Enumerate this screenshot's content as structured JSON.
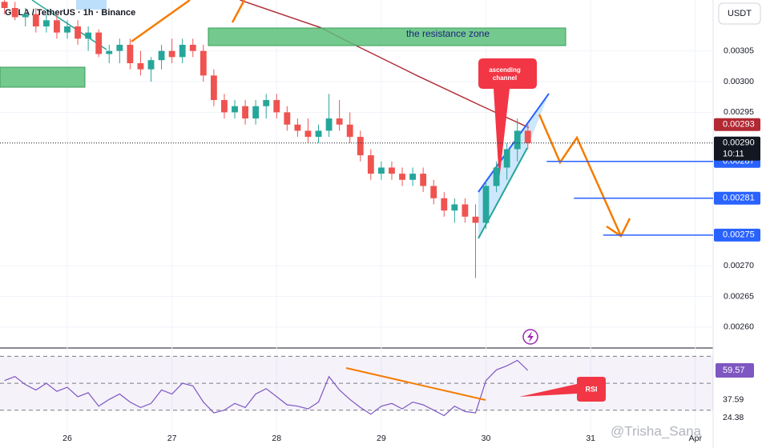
{
  "chart_data": {
    "type": "candlestick",
    "title": "GALA / TetherUS · 1h · Binance",
    "currency": "USDT",
    "x": [
      25.4,
      25.5,
      25.6,
      25.7,
      25.8,
      25.9,
      26.0,
      26.1,
      26.2,
      26.3,
      26.4,
      26.5,
      26.6,
      26.7,
      26.8,
      26.9,
      27.0,
      27.1,
      27.2,
      27.3,
      27.4,
      27.5,
      27.6,
      27.7,
      27.8,
      27.9,
      28.0,
      28.1,
      28.2,
      28.3,
      28.4,
      28.5,
      28.6,
      28.7,
      28.8,
      28.9,
      29.0,
      29.1,
      29.2,
      29.3,
      29.4,
      29.5,
      29.6,
      29.7,
      29.8,
      29.9,
      30.0,
      30.1,
      30.2,
      30.3,
      30.4
    ],
    "open": [
      0.00313,
      0.00312,
      0.003105,
      0.00311,
      0.00309,
      0.0031,
      0.00308,
      0.00309,
      0.00307,
      0.00308,
      0.003045,
      0.00305,
      0.00306,
      0.00303,
      0.00302,
      0.003035,
      0.00305,
      0.00304,
      0.00306,
      0.00305,
      0.00301,
      0.00297,
      0.00295,
      0.00296,
      0.00294,
      0.00296,
      0.00297,
      0.00295,
      0.00293,
      0.00292,
      0.00291,
      0.00292,
      0.00294,
      0.00293,
      0.00291,
      0.00288,
      0.00285,
      0.00286,
      0.00285,
      0.00284,
      0.00285,
      0.00283,
      0.00281,
      0.00279,
      0.0028,
      0.00278,
      0.00277,
      0.00283,
      0.00286,
      0.00289,
      0.00292
    ],
    "high": [
      0.00314,
      0.00313,
      0.00312,
      0.00312,
      0.00311,
      0.00311,
      0.0031,
      0.0031,
      0.00309,
      0.003085,
      0.00306,
      0.00307,
      0.00307,
      0.00305,
      0.00304,
      0.00306,
      0.00307,
      0.00307,
      0.00307,
      0.00306,
      0.00302,
      0.00298,
      0.00297,
      0.00297,
      0.00297,
      0.00298,
      0.00298,
      0.00296,
      0.00294,
      0.00294,
      0.00293,
      0.00298,
      0.00297,
      0.00295,
      0.00292,
      0.00289,
      0.00287,
      0.00287,
      0.00286,
      0.00286,
      0.00286,
      0.00284,
      0.00282,
      0.00281,
      0.00281,
      0.0028,
      0.00284,
      0.00287,
      0.0029,
      0.00294,
      0.00293
    ],
    "low": [
      0.00311,
      0.0031,
      0.00309,
      0.00308,
      0.00308,
      0.00307,
      0.00307,
      0.00306,
      0.00305,
      0.00304,
      0.00303,
      0.00303,
      0.00302,
      0.00301,
      0.003,
      0.00302,
      0.00303,
      0.00303,
      0.00304,
      0.003,
      0.00296,
      0.00294,
      0.00294,
      0.00293,
      0.00293,
      0.00294,
      0.00294,
      0.00292,
      0.00291,
      0.0029,
      0.0029,
      0.00291,
      0.00292,
      0.0029,
      0.00287,
      0.00284,
      0.00284,
      0.00284,
      0.00283,
      0.00283,
      0.00282,
      0.0028,
      0.00278,
      0.00277,
      0.00277,
      0.00268,
      0.00276,
      0.00282,
      0.00284,
      0.00287,
      0.00289
    ],
    "close": [
      0.00312,
      0.003105,
      0.00311,
      0.00309,
      0.0031,
      0.00308,
      0.00309,
      0.00307,
      0.00308,
      0.003045,
      0.00305,
      0.00306,
      0.00303,
      0.00302,
      0.003035,
      0.00305,
      0.00304,
      0.00306,
      0.00305,
      0.00301,
      0.00297,
      0.00295,
      0.00296,
      0.00294,
      0.00296,
      0.00297,
      0.00295,
      0.00293,
      0.00292,
      0.00291,
      0.00292,
      0.00294,
      0.00293,
      0.00291,
      0.00288,
      0.00285,
      0.00286,
      0.00285,
      0.00284,
      0.00285,
      0.00283,
      0.00281,
      0.00279,
      0.0028,
      0.00278,
      0.00277,
      0.00283,
      0.00286,
      0.00289,
      0.00292,
      0.0029
    ],
    "up_color": "#26a69a",
    "down_color": "#ef5350",
    "xlim": [
      25.357,
      32.17
    ],
    "xticks": [
      26,
      27,
      28,
      29,
      30,
      31,
      {
        "value": 32,
        "label": "Apr"
      }
    ],
    "ylim": [
      0.002566,
      0.003133
    ],
    "yticks": [
      0.00305,
      {
        "value": 0.003,
        "label": "0.00300"
      },
      0.00295,
      {
        "value": 0.0027,
        "label": "0.00270"
      },
      0.00265,
      {
        "value": 0.0026,
        "label": "0.00260"
      }
    ],
    "ma_line": {
      "color": "#b2323a",
      "x": [
        27.65,
        28.42,
        28.72,
        29.34,
        29.95,
        30.41
      ],
      "values": [
        0.003133,
        0.003088,
        0.003062,
        0.00301,
        0.002961,
        0.002925
      ]
    },
    "price_levels": [
      {
        "value": 0.00293,
        "color": "#b22833",
        "line": false
      },
      {
        "value": 0.00287,
        "color": "#2962ff",
        "line": true,
        "from": 30.58
      },
      {
        "value": 0.00281,
        "color": "#2962ff",
        "line": true,
        "from": 30.84
      },
      {
        "value": 0.00275,
        "color": "#2962ff",
        "line": true,
        "from": 31.12
      }
    ],
    "current": {
      "value": 0.0029,
      "label": "0.00290",
      "countdown": "10:11"
    },
    "annotations": {
      "resistance": "the resistance zone",
      "channel": [
        "ascending",
        "channel"
      ],
      "rsi": "RSI"
    },
    "rsi": {
      "color": "#7e57c2",
      "values": [
        52,
        55,
        49,
        45,
        50,
        44,
        47,
        40,
        43,
        33,
        38,
        42,
        36,
        32,
        35,
        45,
        42,
        50,
        48,
        36,
        28,
        30,
        35,
        32,
        42,
        46,
        40,
        34,
        33,
        31,
        36,
        55,
        45,
        38,
        32,
        27,
        33,
        35,
        31,
        36,
        34,
        30,
        26,
        33,
        29,
        28,
        52,
        60,
        63,
        67,
        59.57
      ],
      "ylim": [
        13.8,
        75.6
      ],
      "levels": [
        30,
        50,
        70
      ],
      "ma_value": 37.59,
      "low_value": 24.38
    },
    "watermark": "@Trisha_Sana"
  }
}
